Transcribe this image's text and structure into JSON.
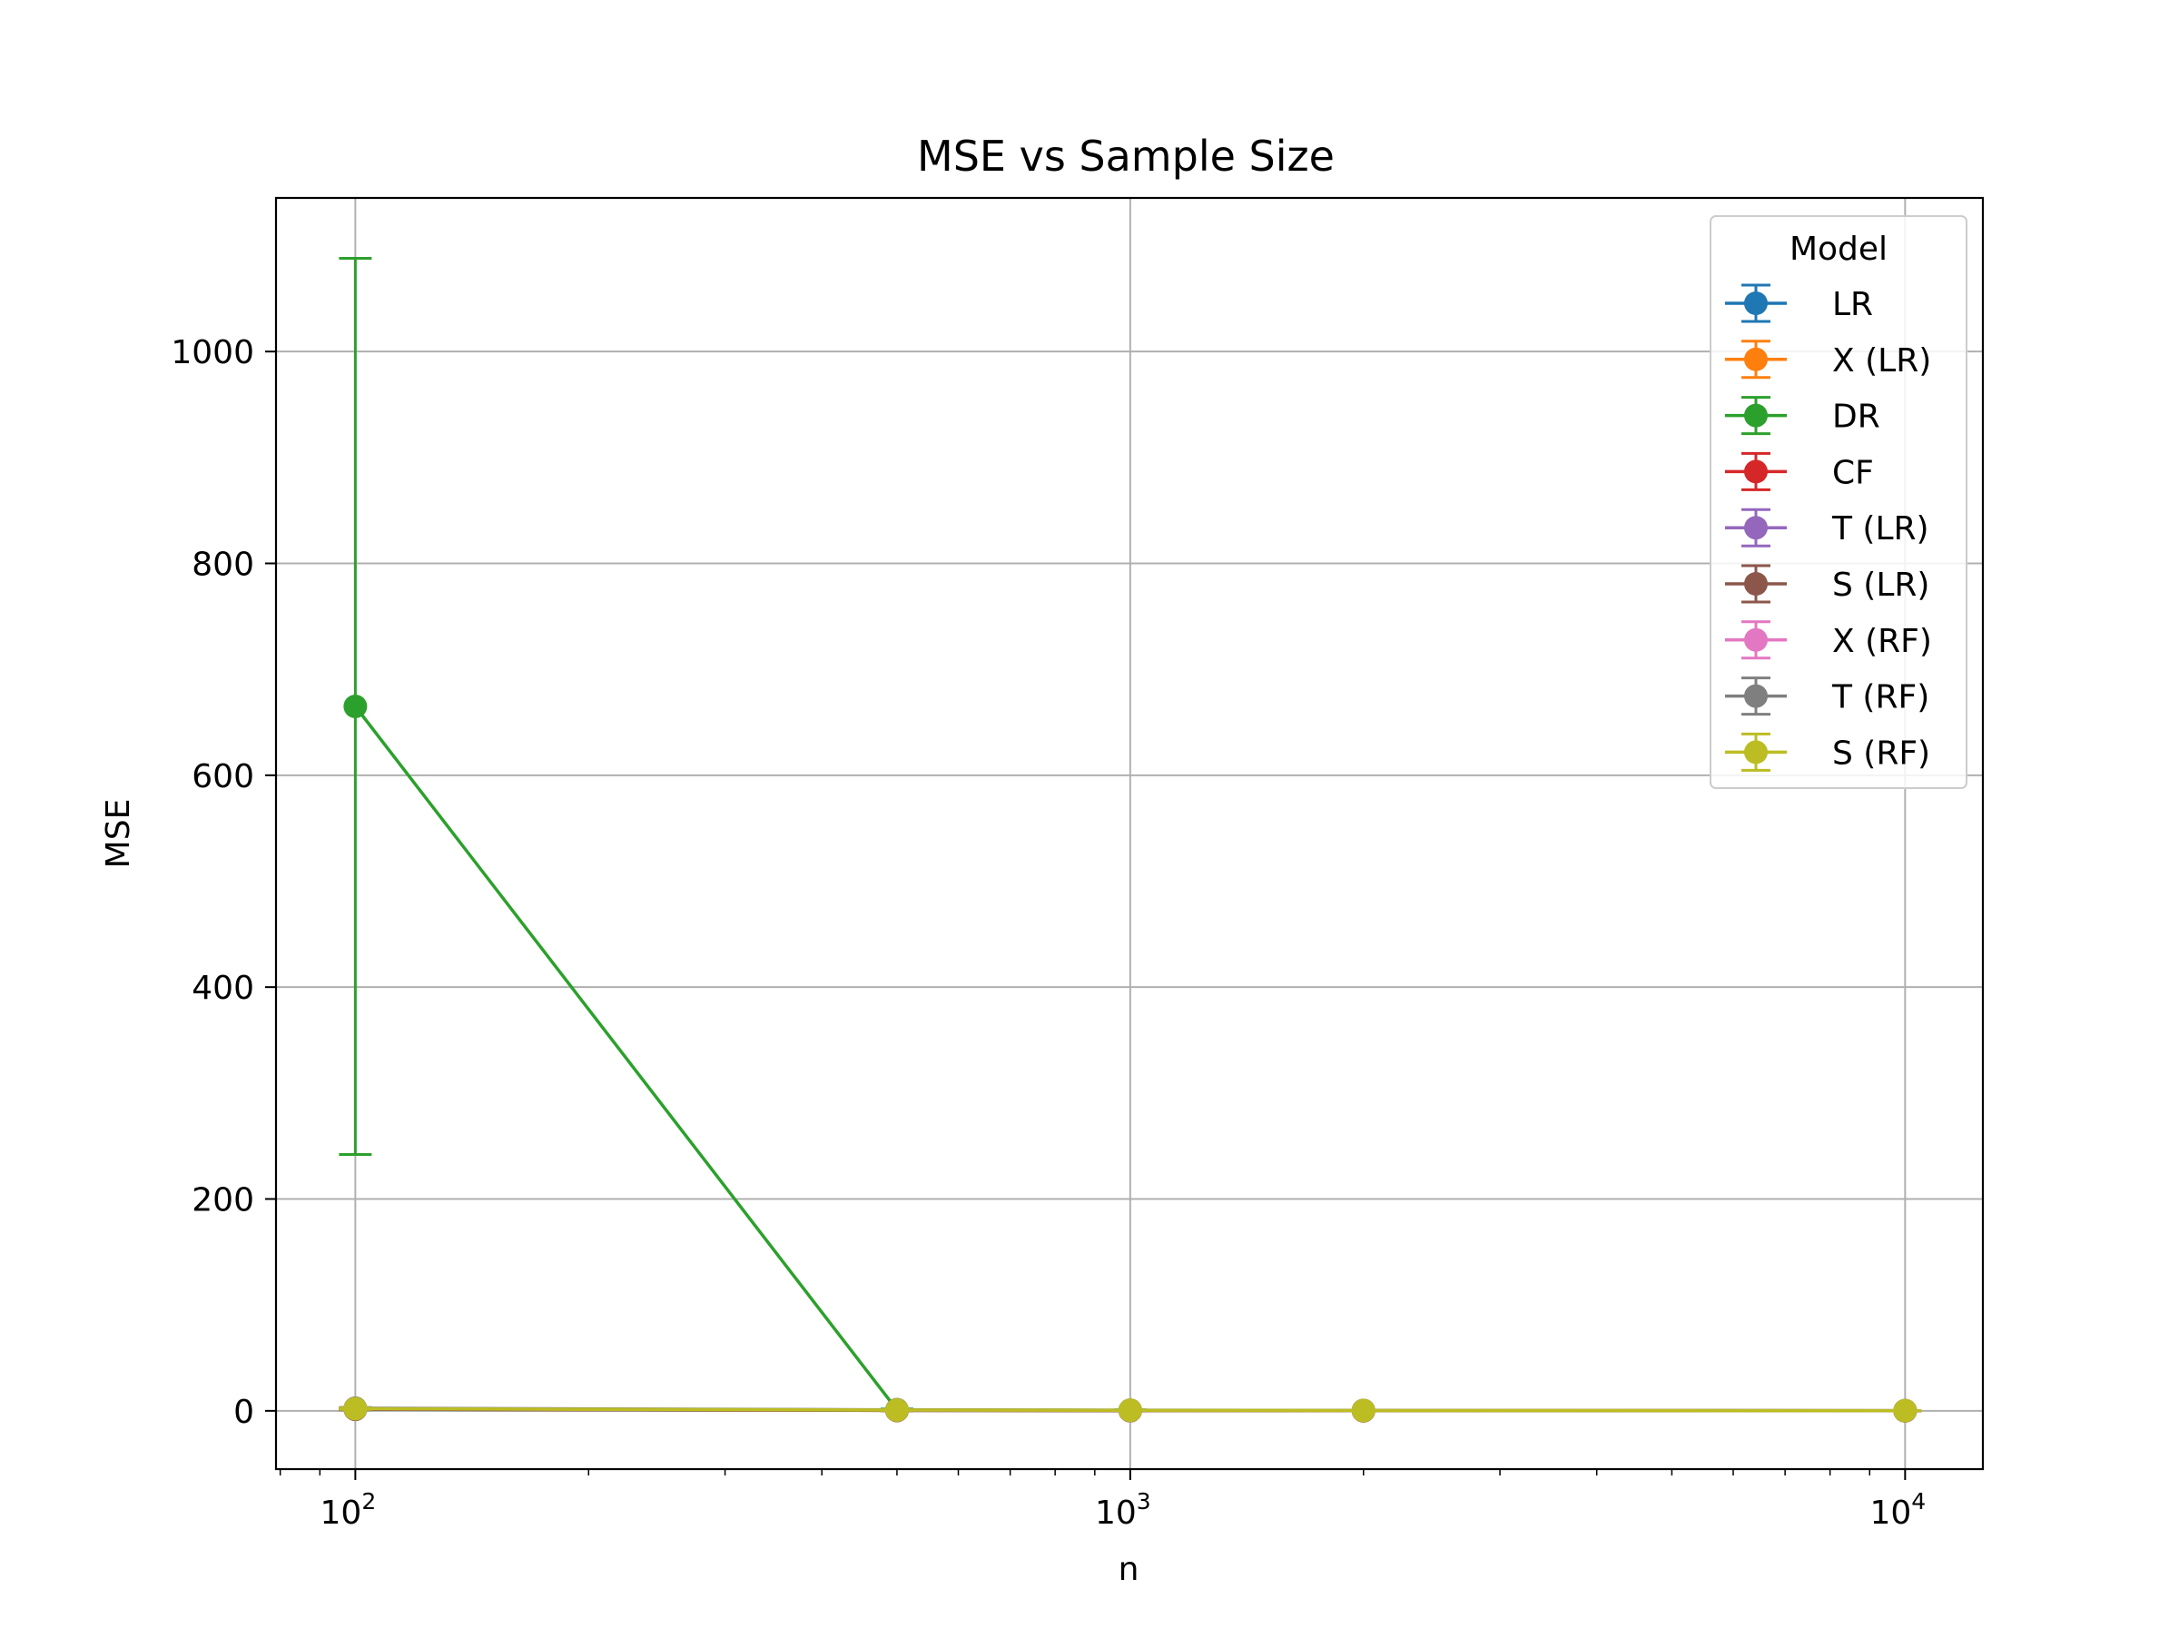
{
  "chart_data": {
    "type": "line",
    "title": "MSE vs Sample Size",
    "xlabel": "n",
    "ylabel": "MSE",
    "xscale": "log",
    "xlim": [
      79,
      12600
    ],
    "ylim": [
      -55,
      1145
    ],
    "grid": true,
    "x": [
      100,
      500,
      1000,
      2000,
      10000
    ],
    "x_ticks": [
      {
        "value": 100,
        "base": "10",
        "exp": "2"
      },
      {
        "value": 1000,
        "base": "10",
        "exp": "3"
      },
      {
        "value": 10000,
        "base": "10",
        "exp": "4"
      }
    ],
    "y_ticks": [
      0,
      200,
      400,
      600,
      800,
      1000
    ],
    "y_tick_labels": [
      "0",
      "200",
      "400",
      "600",
      "800",
      "1000"
    ],
    "legend": {
      "title": "Model",
      "location": "top-right"
    },
    "series": [
      {
        "name": "LR",
        "color": "#1f77b4",
        "values": [
          1.5,
          0.4,
          0.2,
          0.1,
          0.05
        ],
        "error": [
          0.5,
          0.2,
          0.1,
          0.05,
          0.02
        ]
      },
      {
        "name": "X (LR)",
        "color": "#ff7f0e",
        "values": [
          1.6,
          0.4,
          0.2,
          0.1,
          0.05
        ],
        "error": [
          0.5,
          0.2,
          0.1,
          0.05,
          0.02
        ]
      },
      {
        "name": "DR",
        "color": "#2ca02c",
        "values": [
          665,
          1.0,
          0.5,
          0.3,
          0.1
        ],
        "error": [
          423,
          0.8,
          0.4,
          0.2,
          0.05
        ]
      },
      {
        "name": "CF",
        "color": "#d62728",
        "values": [
          2.0,
          0.6,
          0.3,
          0.2,
          0.1
        ],
        "error": [
          0.6,
          0.3,
          0.1,
          0.1,
          0.05
        ]
      },
      {
        "name": "T (LR)",
        "color": "#9467bd",
        "values": [
          1.8,
          0.5,
          0.3,
          0.1,
          0.05
        ],
        "error": [
          0.6,
          0.2,
          0.1,
          0.05,
          0.02
        ]
      },
      {
        "name": "S (LR)",
        "color": "#8c564b",
        "values": [
          1.5,
          0.4,
          0.2,
          0.1,
          0.05
        ],
        "error": [
          0.5,
          0.2,
          0.1,
          0.05,
          0.02
        ]
      },
      {
        "name": "X (RF)",
        "color": "#e377c2",
        "values": [
          2.2,
          0.8,
          0.5,
          0.3,
          0.2
        ],
        "error": [
          0.6,
          0.3,
          0.2,
          0.1,
          0.05
        ]
      },
      {
        "name": "T (RF)",
        "color": "#7f7f7f",
        "values": [
          2.5,
          1.0,
          0.6,
          0.4,
          0.2
        ],
        "error": [
          0.7,
          0.3,
          0.2,
          0.1,
          0.05
        ]
      },
      {
        "name": "S (RF)",
        "color": "#bcbd22",
        "values": [
          2.0,
          0.7,
          0.5,
          0.3,
          0.2
        ],
        "error": [
          0.6,
          0.3,
          0.2,
          0.1,
          0.05
        ]
      }
    ]
  }
}
